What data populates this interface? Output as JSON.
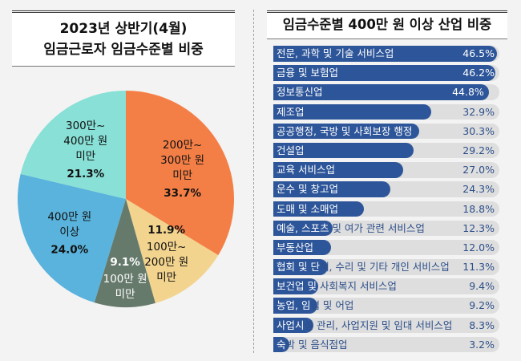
{
  "chart_data": [
    {
      "type": "pie",
      "title": "2023년 상반기(4월) 임금근로자 임금수준별 비중",
      "title_lines": [
        "2023년 상반기(4월)",
        "임금근로자 임금수준별 비중"
      ],
      "slices": [
        {
          "label_lines": [
            "200만~",
            "300만 원",
            "미만"
          ],
          "value": 33.7,
          "pct_text": "33.7%",
          "color": "#f47f46",
          "text_color": "#111111"
        },
        {
          "label_lines": [
            "100만~",
            "200만 원",
            "미만"
          ],
          "value": 11.9,
          "pct_text": "11.9%",
          "color": "#f2d48e",
          "text_color": "#111111"
        },
        {
          "label_lines": [
            "100만 원",
            "미만"
          ],
          "value": 9.1,
          "pct_text": "9.1%",
          "color": "#667a6c",
          "text_color": "#ffffff"
        },
        {
          "label_lines": [
            "400만 원",
            "이상"
          ],
          "value": 24.0,
          "pct_text": "24.0%",
          "color": "#5ab3dc",
          "text_color": "#111111"
        },
        {
          "label_lines": [
            "300만~",
            "400만 원",
            "미만"
          ],
          "value": 21.3,
          "pct_text": "21.3%",
          "color": "#88e0d6",
          "text_color": "#111111"
        }
      ],
      "start": "12 o'clock",
      "direction": "clockwise"
    },
    {
      "type": "bar",
      "orientation": "horizontal",
      "title": "임금수준별 400만 원 이상 산업 비중",
      "xlim": [
        0,
        47
      ],
      "bar_color": "#2d5599",
      "track_color": "#dedede",
      "categories": [
        "전문, 과학 및 기술 서비스업",
        "금융 및 보험업",
        "정보통신업",
        "제조업",
        "공공행정, 국방 및 사회보장 행정",
        "건설업",
        "교육 서비스업",
        "운수 및 창고업",
        "도매 및 소매업",
        "예술, 스포츠 및 여가 관련 서비스업",
        "부동산업",
        "협회 및 단체, 수리 및 기타 개인 서비스업",
        "보건업 및 사회복지 서비스업",
        "농업, 임업 및 어업",
        "사업시설 관리, 사업지원 및 임대 서비스업",
        "숙박 및 음식점업"
      ],
      "values": [
        46.5,
        46.2,
        44.8,
        32.9,
        30.3,
        29.2,
        27.0,
        24.3,
        18.8,
        12.3,
        12.0,
        11.3,
        9.4,
        9.2,
        8.3,
        3.2
      ],
      "value_labels": [
        "46.5%",
        "46.2%",
        "44.8%",
        "32.9%",
        "30.3%",
        "29.2%",
        "27.0%",
        "24.3%",
        "18.8%",
        "12.3%",
        "12.0%",
        "11.3%",
        "9.4%",
        "9.2%",
        "8.3%",
        "3.2%"
      ]
    }
  ]
}
